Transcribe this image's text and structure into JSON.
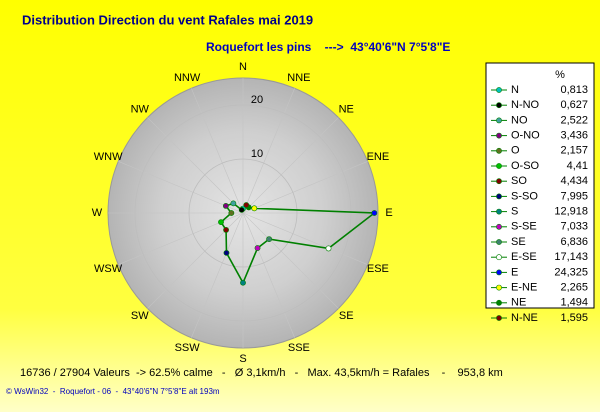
{
  "chart_data": {
    "type": "radar",
    "title": "Distribution Direction du vent Rafales  mai 2019",
    "subtitle": "Roquefort les pins    --->  43°40'6\"N 7°5'8\"E",
    "categories": [
      "N",
      "NNE",
      "NE",
      "ENE",
      "E",
      "ESE",
      "SE",
      "SSE",
      "S",
      "SSW",
      "SW",
      "WSW",
      "W",
      "WNW",
      "NW",
      "NNW"
    ],
    "ylim": [
      0,
      25
    ],
    "yticks": [
      10,
      20
    ],
    "line_color": "#008000",
    "legend_header": "%",
    "legend_labels": [
      "N",
      "N-NO",
      "NO",
      "O-NO",
      "O",
      "O-SO",
      "SO",
      "S-SO",
      "S",
      "S-SE",
      "SE",
      "E-SE",
      "E",
      "E-NE",
      "NE",
      "N-NE"
    ],
    "point_colors": [
      "#00c0c0",
      "#000000",
      "#40a0a0",
      "#800080",
      "#607020",
      "#00c000",
      "#800000",
      "#000080",
      "#008080",
      "#c000c0",
      "#408070",
      "#ffffff",
      "#0000ff",
      "#ffff00",
      "#008000",
      "#800000"
    ],
    "values": [
      0.813,
      0.627,
      2.522,
      3.436,
      2.157,
      4.41,
      4.434,
      7.995,
      12.918,
      7.033,
      6.836,
      17.143,
      24.325,
      2.265,
      1.494,
      1.595
    ],
    "value_labels": [
      "0,813",
      "0,627",
      "2,522",
      "3,436",
      "2,157",
      "4,41",
      "4,434",
      "7,995",
      "12,918",
      "7,033",
      "6,836",
      "17,143",
      "24,325",
      "2,265",
      "1,494",
      "1,595"
    ],
    "footer": "16736 / 27904 Valeurs  -> 62.5% calme   -   Ø 3,1km/h   -   Max. 43,5km/h = Rafales    -    953,8 km",
    "credit": "© WsWin32  -  Roquefort - 06  -  43°40'6\"N 7°5'8\"E alt 193m"
  }
}
